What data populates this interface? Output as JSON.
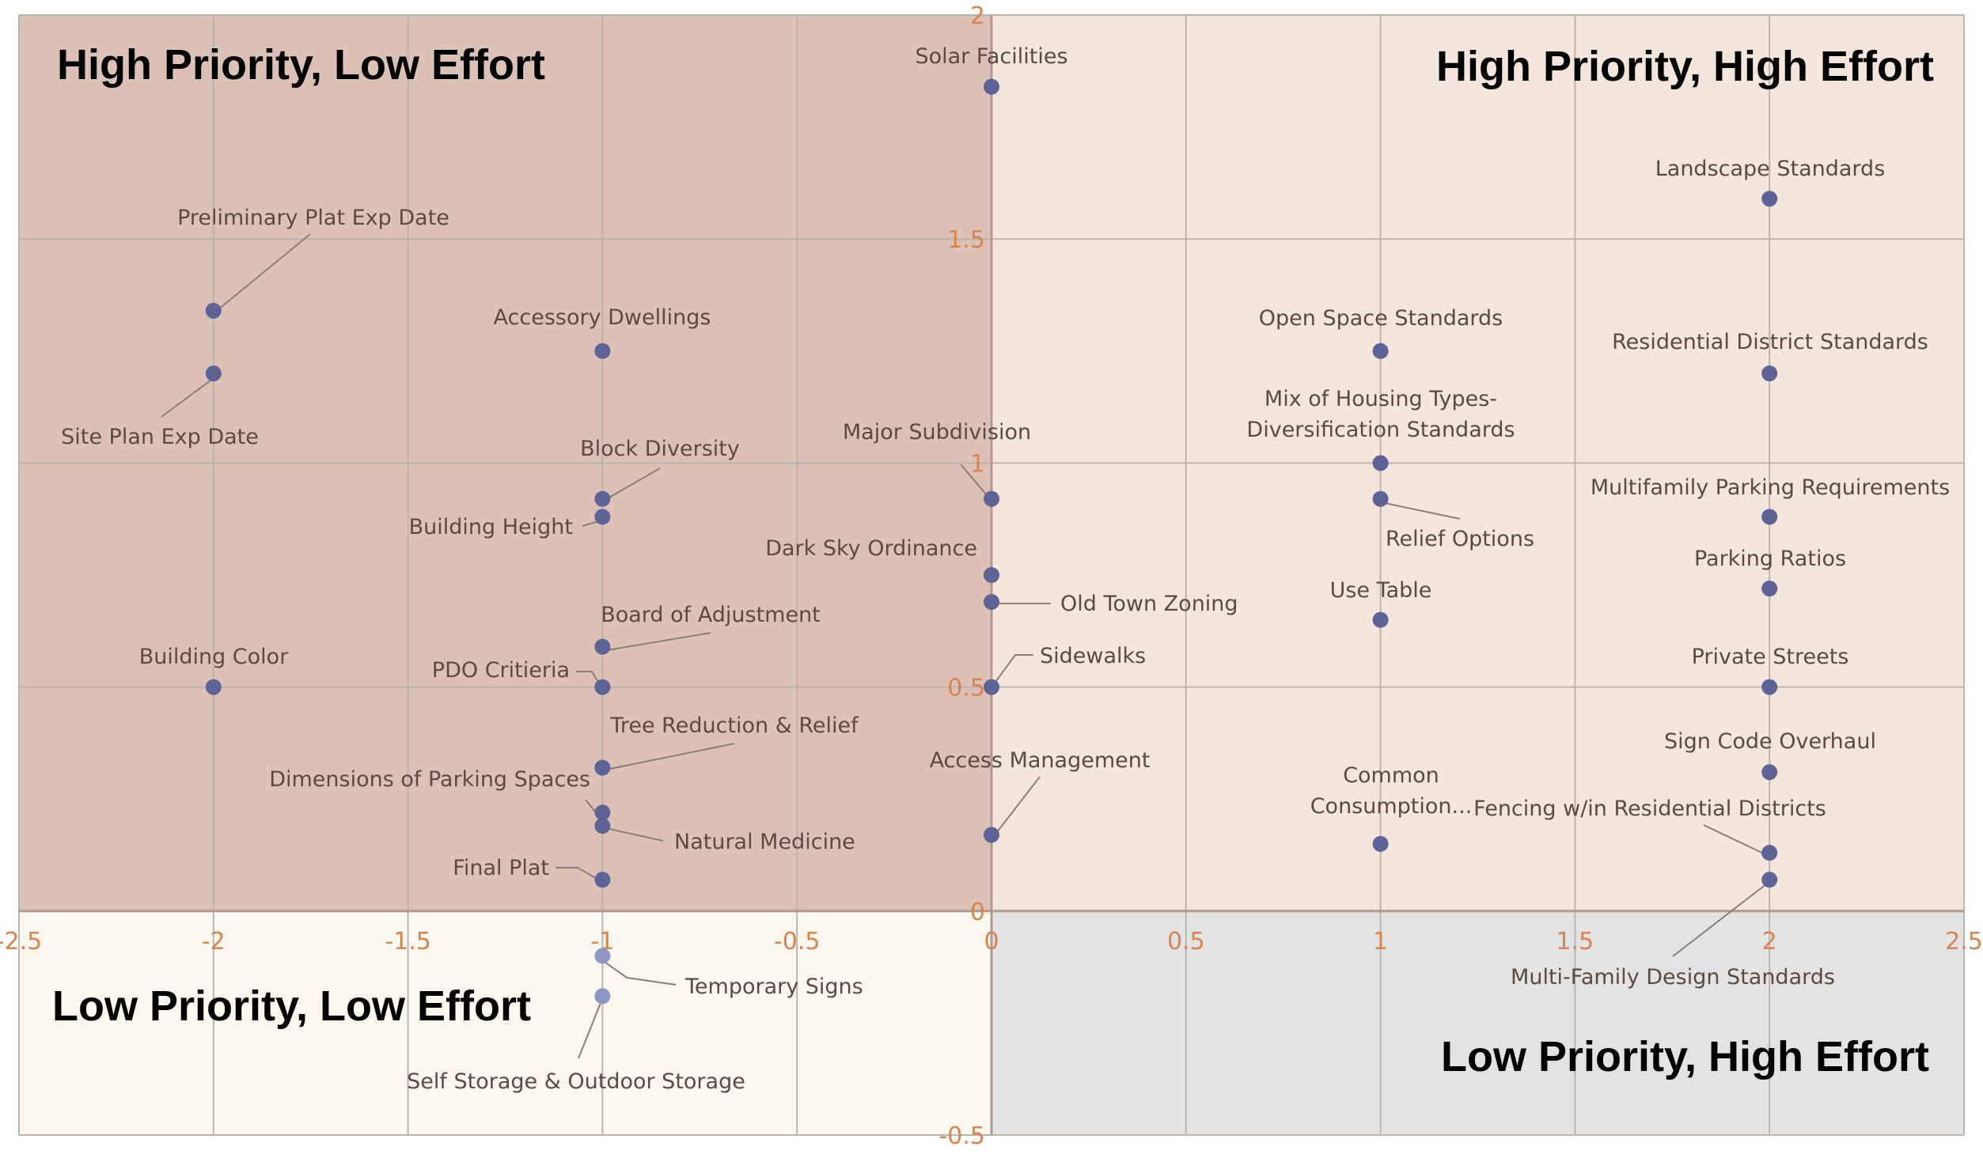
{
  "chart_data": {
    "type": "scatter",
    "title": "",
    "xlabel": "",
    "ylabel": "",
    "xlim": [
      -2.5,
      2.5
    ],
    "ylim": [
      -0.5,
      2
    ],
    "grid": true,
    "x_ticks": [
      -2.5,
      -2,
      -1.5,
      -1,
      -0.5,
      0,
      0.5,
      1,
      1.5,
      2,
      2.5
    ],
    "x_tick_labels": [
      "-2.5",
      "-2",
      "-1.5",
      "-1",
      "-0.5",
      "0",
      "0.5",
      "1",
      "1.5",
      "2",
      "2.5"
    ],
    "y_ticks": [
      -0.5,
      0,
      0.5,
      1,
      1.5,
      2
    ],
    "y_tick_labels": [
      "-0.5",
      "0",
      "0.5",
      "1",
      "1.5",
      "2"
    ],
    "quadrants": [
      {
        "name": "High Priority, Low Effort",
        "x": [
          -2.5,
          0
        ],
        "y": [
          0,
          2
        ],
        "color": "#dcc1b7"
      },
      {
        "name": "High Priority, High Effort",
        "x": [
          0,
          2.5
        ],
        "y": [
          0,
          2
        ],
        "color": "#f4e6dc"
      },
      {
        "name": "Low Priority, Low Effort",
        "x": [
          -2.5,
          0
        ],
        "y": [
          -0.5,
          0
        ],
        "color": "#fdf8ef"
      },
      {
        "name": "Low Priority, High Effort",
        "x": [
          0,
          2.5
        ],
        "y": [
          -0.5,
          0
        ],
        "color": "#e4e3e3"
      }
    ],
    "points": [
      {
        "label": "Solar Facilities",
        "x": 0,
        "y": 1.84
      },
      {
        "label": "Preliminary Plat Exp Date",
        "x": -2,
        "y": 1.34
      },
      {
        "label": "Site Plan Exp Date",
        "x": -2,
        "y": 1.2
      },
      {
        "label": "Accessory Dwellings",
        "x": -1,
        "y": 1.25
      },
      {
        "label": "Block Diversity",
        "x": -1,
        "y": 0.92
      },
      {
        "label": "Building Height",
        "x": -1,
        "y": 0.88
      },
      {
        "label": "Major Subdivision",
        "x": 0,
        "y": 0.92
      },
      {
        "label": "Dark Sky Ordinance",
        "x": 0,
        "y": 0.75
      },
      {
        "label": "Old Town Zoning",
        "x": 0,
        "y": 0.69
      },
      {
        "label": "Board of Adjustment",
        "x": -1,
        "y": 0.59
      },
      {
        "label": "Building Color",
        "x": -2,
        "y": 0.5
      },
      {
        "label": "PDO Critieria",
        "x": -1,
        "y": 0.5
      },
      {
        "label": "Sidewalks",
        "x": 0,
        "y": 0.5
      },
      {
        "label": "Tree Reduction & Relief",
        "x": -1,
        "y": 0.32
      },
      {
        "label": "Dimensions of Parking Spaces",
        "x": -1,
        "y": 0.22
      },
      {
        "label": "Natural Medicine",
        "x": -1,
        "y": 0.19
      },
      {
        "label": "Final Plat",
        "x": -1,
        "y": 0.07
      },
      {
        "label": "Access Management",
        "x": 0,
        "y": 0.17
      },
      {
        "label": "Landscape Standards",
        "x": 2,
        "y": 1.59
      },
      {
        "label": "Open Space Standards",
        "x": 1,
        "y": 1.25
      },
      {
        "label": "Residential District Standards",
        "x": 2,
        "y": 1.2
      },
      {
        "label": "Mix of Housing Types- Diversification Standards",
        "x": 1,
        "y": 1.0
      },
      {
        "label": "Relief Options",
        "x": 1,
        "y": 0.92
      },
      {
        "label": "Multifamily Parking Requirements",
        "x": 2,
        "y": 0.88
      },
      {
        "label": "Parking Ratios",
        "x": 2,
        "y": 0.72
      },
      {
        "label": "Use Table",
        "x": 1,
        "y": 0.65
      },
      {
        "label": "Private Streets",
        "x": 2,
        "y": 0.5
      },
      {
        "label": "Sign Code Overhaul",
        "x": 2,
        "y": 0.31
      },
      {
        "label": "Common Consumption...",
        "x": 1,
        "y": 0.15
      },
      {
        "label": "Fencing w/in Residential Districts",
        "x": 2,
        "y": 0.13
      },
      {
        "label": "Multi-Family Design Standards",
        "x": 2,
        "y": 0.07
      },
      {
        "label": "Temporary Signs",
        "x": -1,
        "y": -0.1
      },
      {
        "label": "Self Storage & Outdoor Storage",
        "x": -1,
        "y": -0.19
      }
    ],
    "colors": {
      "point_dark": "#5d6394",
      "point_light": "#8d99c4",
      "tick": "#d9844a",
      "grid": "#bdb3ad",
      "leader": "#8a7e78"
    }
  }
}
